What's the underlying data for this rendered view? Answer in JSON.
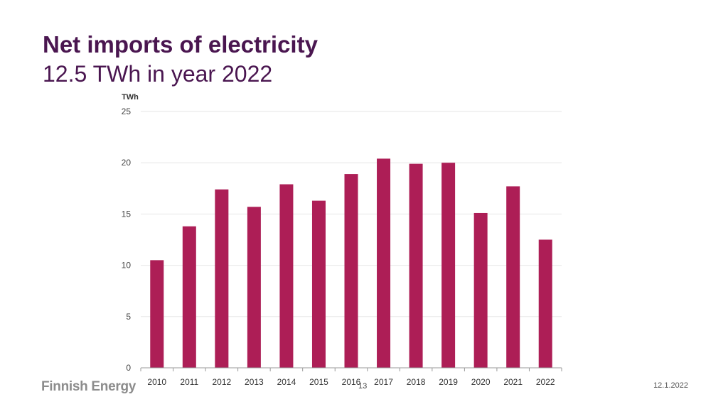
{
  "slide": {
    "title": "Net imports of electricity",
    "subtitle": "12.5 TWh in year 2022",
    "brand": "Finnish Energy",
    "page_number": "13",
    "date": "12.1.2022"
  },
  "chart_data": {
    "type": "bar",
    "title": "Net imports of electricity",
    "ylabel": "TWh",
    "xlabel": "",
    "ylim": [
      0,
      25
    ],
    "yticks": [
      0,
      5,
      10,
      15,
      20,
      25
    ],
    "grid": true,
    "categories": [
      "2010",
      "2011",
      "2012",
      "2013",
      "2014",
      "2015",
      "2016",
      "2017",
      "2018",
      "2019",
      "2020",
      "2021",
      "2022"
    ],
    "values": [
      10.5,
      13.8,
      17.4,
      15.7,
      17.9,
      16.3,
      18.9,
      20.4,
      19.9,
      20.0,
      15.1,
      17.7,
      12.5
    ],
    "bar_color": "#ad1e56"
  }
}
